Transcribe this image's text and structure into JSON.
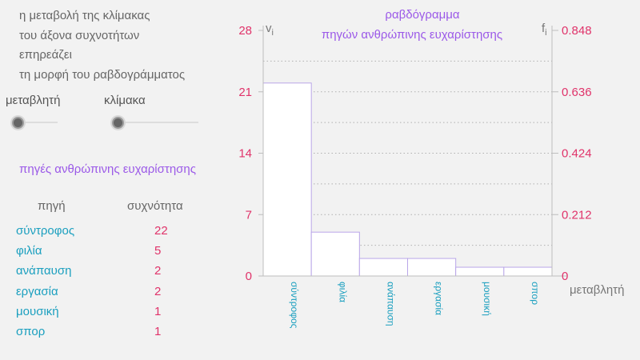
{
  "intro_lines": [
    "η μεταβολή της κλίμακας",
    "του άξονα συχνοτήτων",
    "επηρεάζει",
    "τη μορφή του ραβδογράμματος"
  ],
  "controls": {
    "variable_label": "μεταβλητή",
    "scale_label": "κλίμακα",
    "variable_value": 0,
    "scale_value": 0
  },
  "table": {
    "title": "πηγές ανθρώπινης ευχαρίστησης",
    "headers": {
      "source": "πηγή",
      "frequency": "συχνότητα"
    },
    "rows": [
      {
        "name": "σύντροφος",
        "freq": "22"
      },
      {
        "name": "φιλία",
        "freq": "5"
      },
      {
        "name": "ανάπαυση",
        "freq": "2"
      },
      {
        "name": "εργασία",
        "freq": "2"
      },
      {
        "name": "μουσική",
        "freq": "1"
      },
      {
        "name": "σπορ",
        "freq": "1"
      }
    ]
  },
  "chart_data": {
    "type": "bar",
    "title": "ραβδόγραμμα",
    "subtitle": "πηγών ανθρώπινης ευχαρίστησης",
    "categories": [
      "σύντροφος",
      "φιλία",
      "ανάπαυση",
      "εργασία",
      "μουσική",
      "σπορ"
    ],
    "values": [
      22,
      5,
      2,
      2,
      1,
      1
    ],
    "xlabel": "μεταβλητή",
    "ylabel": "v",
    "ylabel_sub": "i",
    "y2label": "f",
    "y2label_sub": "i",
    "ylim": [
      0,
      28
    ],
    "yticks": [
      "0",
      "7",
      "14",
      "21",
      "28"
    ],
    "y2ticks": [
      "0",
      "0.212",
      "0.424",
      "0.636",
      "0.848"
    ],
    "grid": true,
    "colors": {
      "bar_fill": "#ffffff",
      "bar_stroke": "#b9a6e8",
      "tick_label": "#e0336a",
      "category_label": "#1a9fbf",
      "title": "#9b59e8",
      "axis": "#bdbdbd"
    }
  }
}
